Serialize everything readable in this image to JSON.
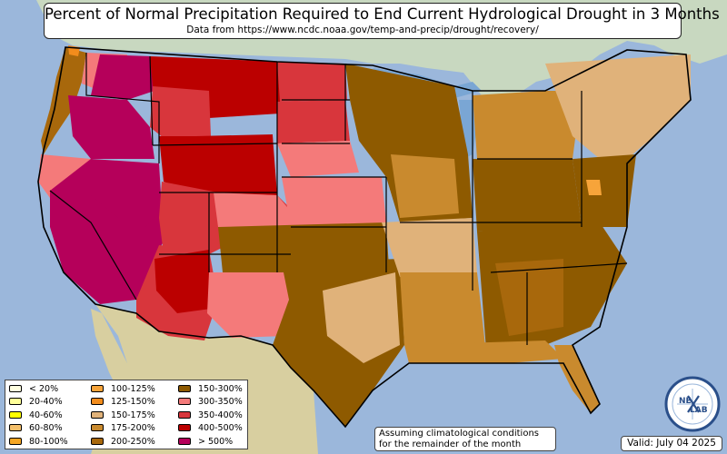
{
  "header": {
    "title": "Percent of Normal Precipitation Required to End Current Hydrological Drought in 3 Months",
    "subtitle": "Data from https://www.ncdc.noaa.gov/temp-and-precip/drought/recovery/"
  },
  "legend": {
    "items": [
      {
        "label": "< 20%",
        "color": "#ffffe0"
      },
      {
        "label": "20-40%",
        "color": "#ffff99"
      },
      {
        "label": "40-60%",
        "color": "#ffff00"
      },
      {
        "label": "60-80%",
        "color": "#f5c06b"
      },
      {
        "label": "80-100%",
        "color": "#f5a623"
      },
      {
        "label": "100-125%",
        "color": "#f7a43a"
      },
      {
        "label": "125-150%",
        "color": "#f28c1c"
      },
      {
        "label": "150-175%",
        "color": "#e0b27a"
      },
      {
        "label": "175-200%",
        "color": "#c98a2e"
      },
      {
        "label": "200-250%",
        "color": "#a8680c"
      },
      {
        "label": "150-300%",
        "color": "#8e5a00"
      },
      {
        "label": "300-350%",
        "color": "#f47a7a"
      },
      {
        "label": "350-400%",
        "color": "#d8363c"
      },
      {
        "label": "400-500%",
        "color": "#bb0000"
      },
      {
        "label": "> 500%",
        "color": "#b5005a"
      }
    ]
  },
  "note": {
    "line1": "Assuming climatological conditions",
    "line2": "for the remainder of the month"
  },
  "valid": "Valid: July 04 2025",
  "logo": {
    "text_top": "NE",
    "text_bottom": "LAB"
  },
  "colors": {
    "ocean": "#9bb7db",
    "canada": "#c8d8c0",
    "mexico": "#d8cfa0",
    "lake": "#7aa6d4"
  }
}
